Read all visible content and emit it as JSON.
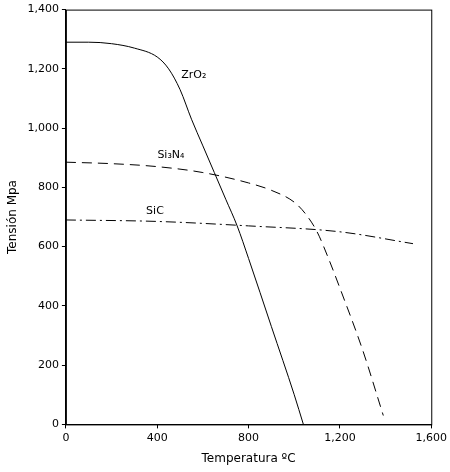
{
  "chart_data": {
    "type": "line",
    "x_label": "Temperatura ºC",
    "y_label": "Tensión Mpa",
    "xlim": [
      0,
      1600
    ],
    "xticks": [
      0,
      400,
      800,
      1200,
      1600
    ],
    "ylim": [
      0,
      1400
    ],
    "yticks": [
      0,
      200,
      400,
      600,
      800,
      1000,
      1200,
      1400
    ],
    "grid": false,
    "series": [
      {
        "color": "#000000",
        "line_style": "solid",
        "x": [
          0,
          100,
          200,
          300,
          400,
          450,
          500,
          550,
          600,
          650,
          700,
          750,
          800,
          900,
          1000,
          1040
        ],
        "values": [
          1290,
          1290,
          1285,
          1270,
          1240,
          1200,
          1130,
          1030,
          940,
          850,
          760,
          670,
          560,
          330,
          100,
          0
        ]
      },
      {
        "color": "#000000",
        "line_style": "dashed",
        "x": [
          0,
          200,
          400,
          600,
          800,
          900,
          1000,
          1050,
          1100,
          1150,
          1200,
          1300,
          1390
        ],
        "values": [
          885,
          880,
          870,
          850,
          815,
          790,
          750,
          710,
          650,
          560,
          460,
          250,
          30
        ]
      },
      {
        "color": "#000000",
        "line_style": "dashdot",
        "x": [
          0,
          400,
          800,
          1200,
          1520
        ],
        "values": [
          690,
          685,
          670,
          650,
          610
        ]
      }
    ],
    "annotations": [
      {
        "text": "ZrO₂",
        "x": 560,
        "y": 1180
      },
      {
        "text": "Si₃N₄",
        "x": 460,
        "y": 910
      },
      {
        "text": "SiC",
        "x": 390,
        "y": 720
      }
    ]
  }
}
